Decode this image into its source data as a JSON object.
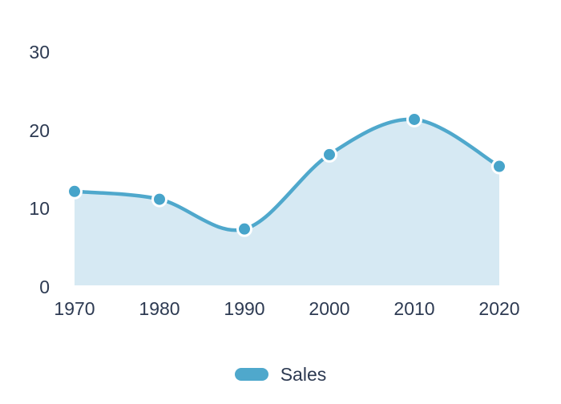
{
  "chart_data": {
    "type": "area",
    "title": "",
    "xlabel": "",
    "ylabel": "",
    "categories": [
      "1970",
      "1980",
      "1990",
      "2000",
      "2010",
      "2020"
    ],
    "series": [
      {
        "name": "Sales",
        "values": [
          12,
          11,
          7.2,
          16.7,
          21.2,
          15.2
        ]
      }
    ],
    "ylim": [
      0,
      30
    ],
    "yticks": [
      0,
      10,
      20,
      30
    ],
    "grid": false,
    "smooth": true,
    "legend_position": "bottom-center",
    "colors": {
      "line": "#4FA8CC",
      "area_fill": "#D6E9F3",
      "point_fill": "#47A4CA",
      "point_border": "#FFFFFF",
      "label_text": "#2D3A52",
      "background": "#FFFFFF"
    }
  }
}
